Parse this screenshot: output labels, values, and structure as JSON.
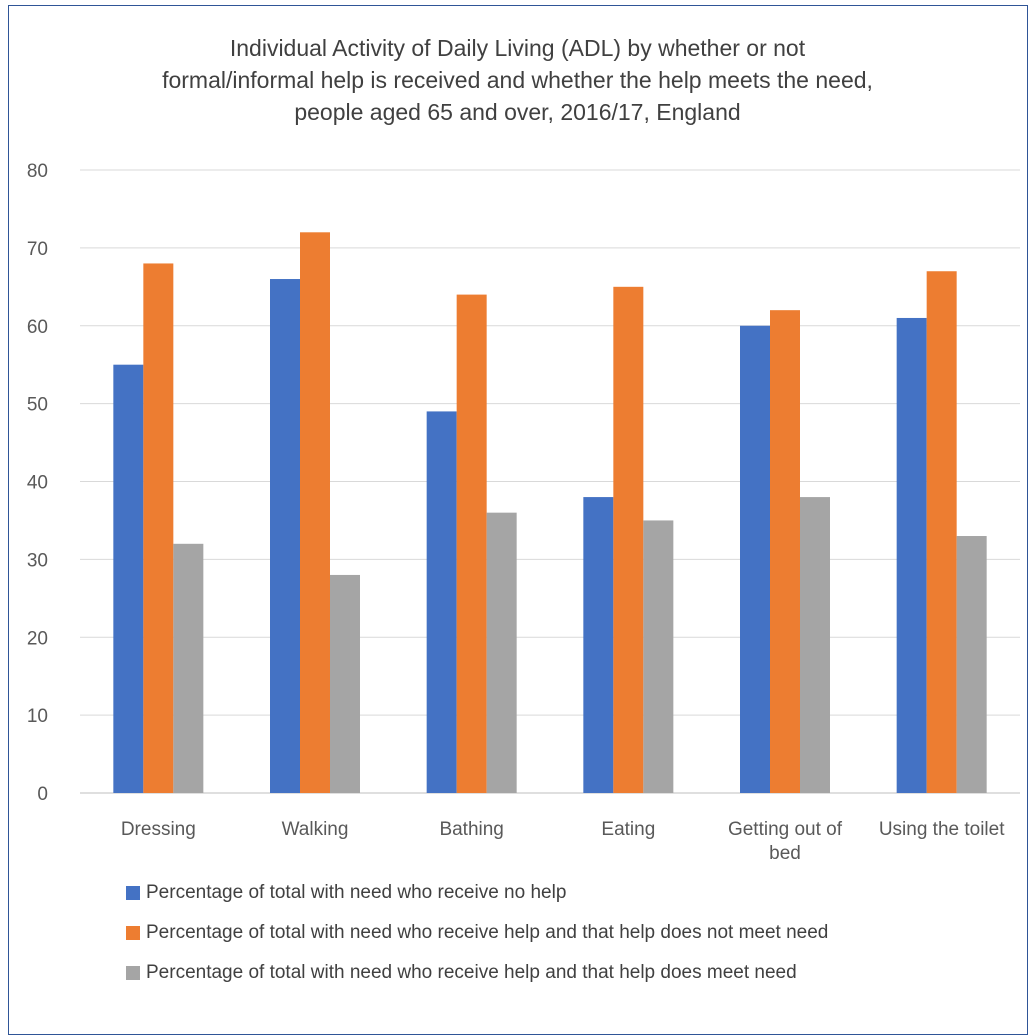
{
  "chart_data": {
    "type": "bar",
    "title_lines": [
      "Individual Activity of Daily Living (ADL) by whether or not",
      "formal/informal help is received and whether the help meets the need,",
      "people aged 65 and over, 2016/17, England"
    ],
    "categories": [
      [
        "Dressing"
      ],
      [
        "Walking"
      ],
      [
        "Bathing"
      ],
      [
        "Eating"
      ],
      [
        "Getting out of",
        "bed"
      ],
      [
        "Using the toilet"
      ]
    ],
    "series": [
      {
        "name": "Percentage of total with need who receive no help",
        "color": "#4472c4",
        "values": [
          55,
          66,
          49,
          38,
          60,
          61
        ]
      },
      {
        "name": "Percentage of total with need who receive help and that help does not meet need",
        "color": "#ed7d31",
        "values": [
          68,
          72,
          64,
          65,
          62,
          67
        ]
      },
      {
        "name": "Percentage of total with need who receive help and that help does meet need",
        "color": "#a5a5a5",
        "values": [
          32,
          28,
          36,
          35,
          38,
          33
        ]
      }
    ],
    "ylim": [
      0,
      80
    ],
    "yticks": [
      0,
      10,
      20,
      30,
      40,
      50,
      60,
      70,
      80
    ],
    "grid": true,
    "legend_position": "bottom",
    "xlabel": "",
    "ylabel": ""
  }
}
